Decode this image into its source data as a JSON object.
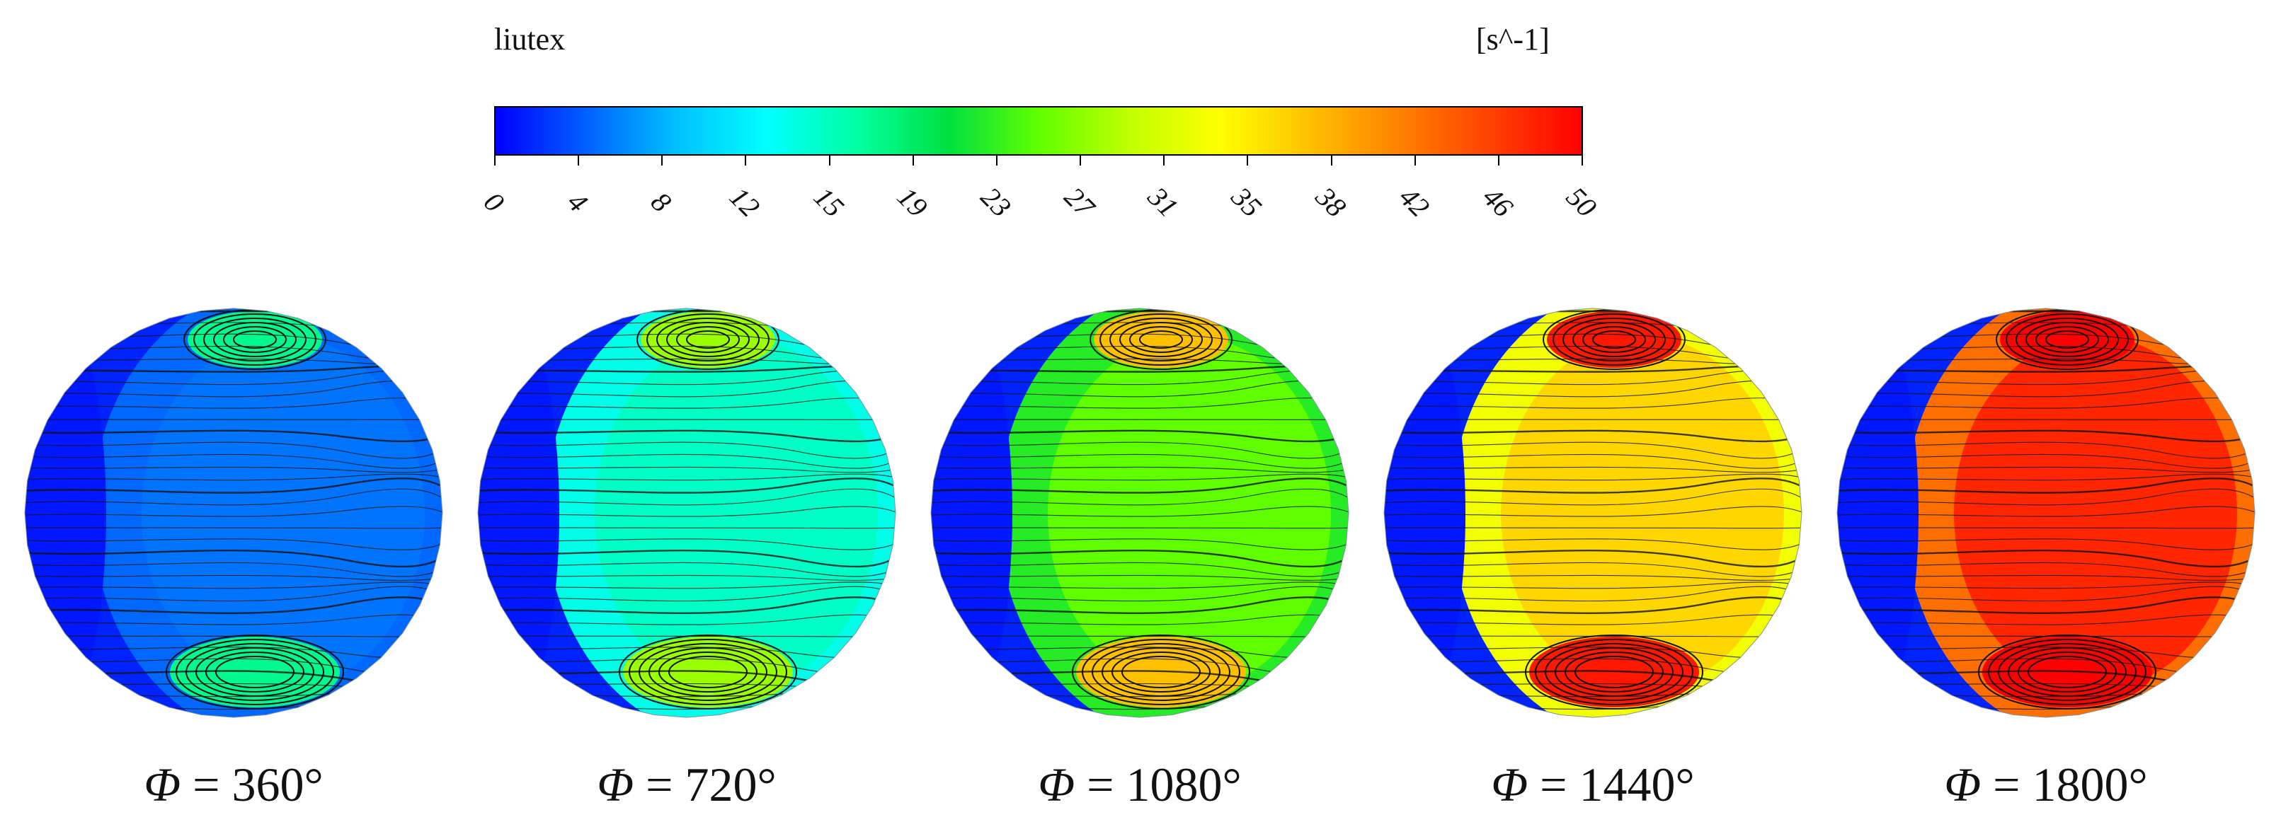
{
  "colorbar": {
    "variable": "liutex",
    "unit": "[s^-1]",
    "ticks": [
      "0",
      "4",
      "8",
      "12",
      "15",
      "19",
      "23",
      "27",
      "31",
      "35",
      "38",
      "42",
      "46",
      "50"
    ],
    "range": [
      0,
      50
    ],
    "colors": [
      "#0000ff",
      "#0060ff",
      "#00c0ff",
      "#00ffff",
      "#00ffa0",
      "#00e040",
      "#60ff00",
      "#c0ff00",
      "#ffff00",
      "#ffc000",
      "#ff8000",
      "#ff4000",
      "#ff0000"
    ]
  },
  "panels": [
    {
      "symbol": "Φ",
      "eq": " = ",
      "value": "360°",
      "level": 0.1
    },
    {
      "symbol": "Φ",
      "eq": " = ",
      "value": "720°",
      "level": 0.3
    },
    {
      "symbol": "Φ",
      "eq": " = ",
      "value": "1080°",
      "level": 0.5
    },
    {
      "symbol": "Φ",
      "eq": " = ",
      "value": "1440°",
      "level": 0.72
    },
    {
      "symbol": "Φ",
      "eq": " = ",
      "value": "1800°",
      "level": 0.95
    }
  ]
}
